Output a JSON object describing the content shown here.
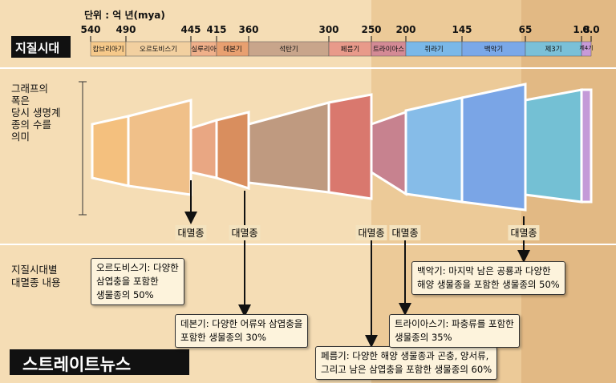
{
  "header": {
    "unit_label": "단위 : 억 년(mya)",
    "section_title": "지질시대"
  },
  "ticks": [
    "540",
    "490",
    "445",
    "415",
    "360",
    "300",
    "250",
    "200",
    "145",
    "65",
    "1.8",
    "0.0"
  ],
  "periods": [
    "캄브리아기",
    "오르도비스기",
    "실루리아",
    "데본기",
    "석탄기",
    "페름기",
    "트라이아스",
    "쥐라기",
    "백악기",
    "제3기",
    "제4기"
  ],
  "graph_note": [
    "그래프의",
    "폭은",
    "당시 생명계",
    "종의 수를",
    "의미"
  ],
  "extinctions": [
    "대멸종",
    "대멸종",
    "대멸종",
    "대멸종",
    "대멸종"
  ],
  "details_title": [
    "지질시대별",
    "대멸종 내용"
  ],
  "boxes": [
    [
      "오르도비스기: 다양한",
      "삼엽충을 포함한",
      "생물종의 50%"
    ],
    [
      "데본기: 다양한 어류와 삼엽충을",
      "포함한 생물종의 30%"
    ],
    [
      "페름기: 다양한 해양 생물종과 곤충, 양서류,",
      "그리고 남은 삼엽충을 포함한 생물종의 60%"
    ],
    [
      "트라이아스기: 파충류를 포함한",
      "생물종의 35%"
    ],
    [
      "백악기: 마지막 남은 공룡과 다양한",
      "해양 생물종을 포함한 생물종의 50%"
    ]
  ],
  "logo": "스트레이트뉴스"
}
